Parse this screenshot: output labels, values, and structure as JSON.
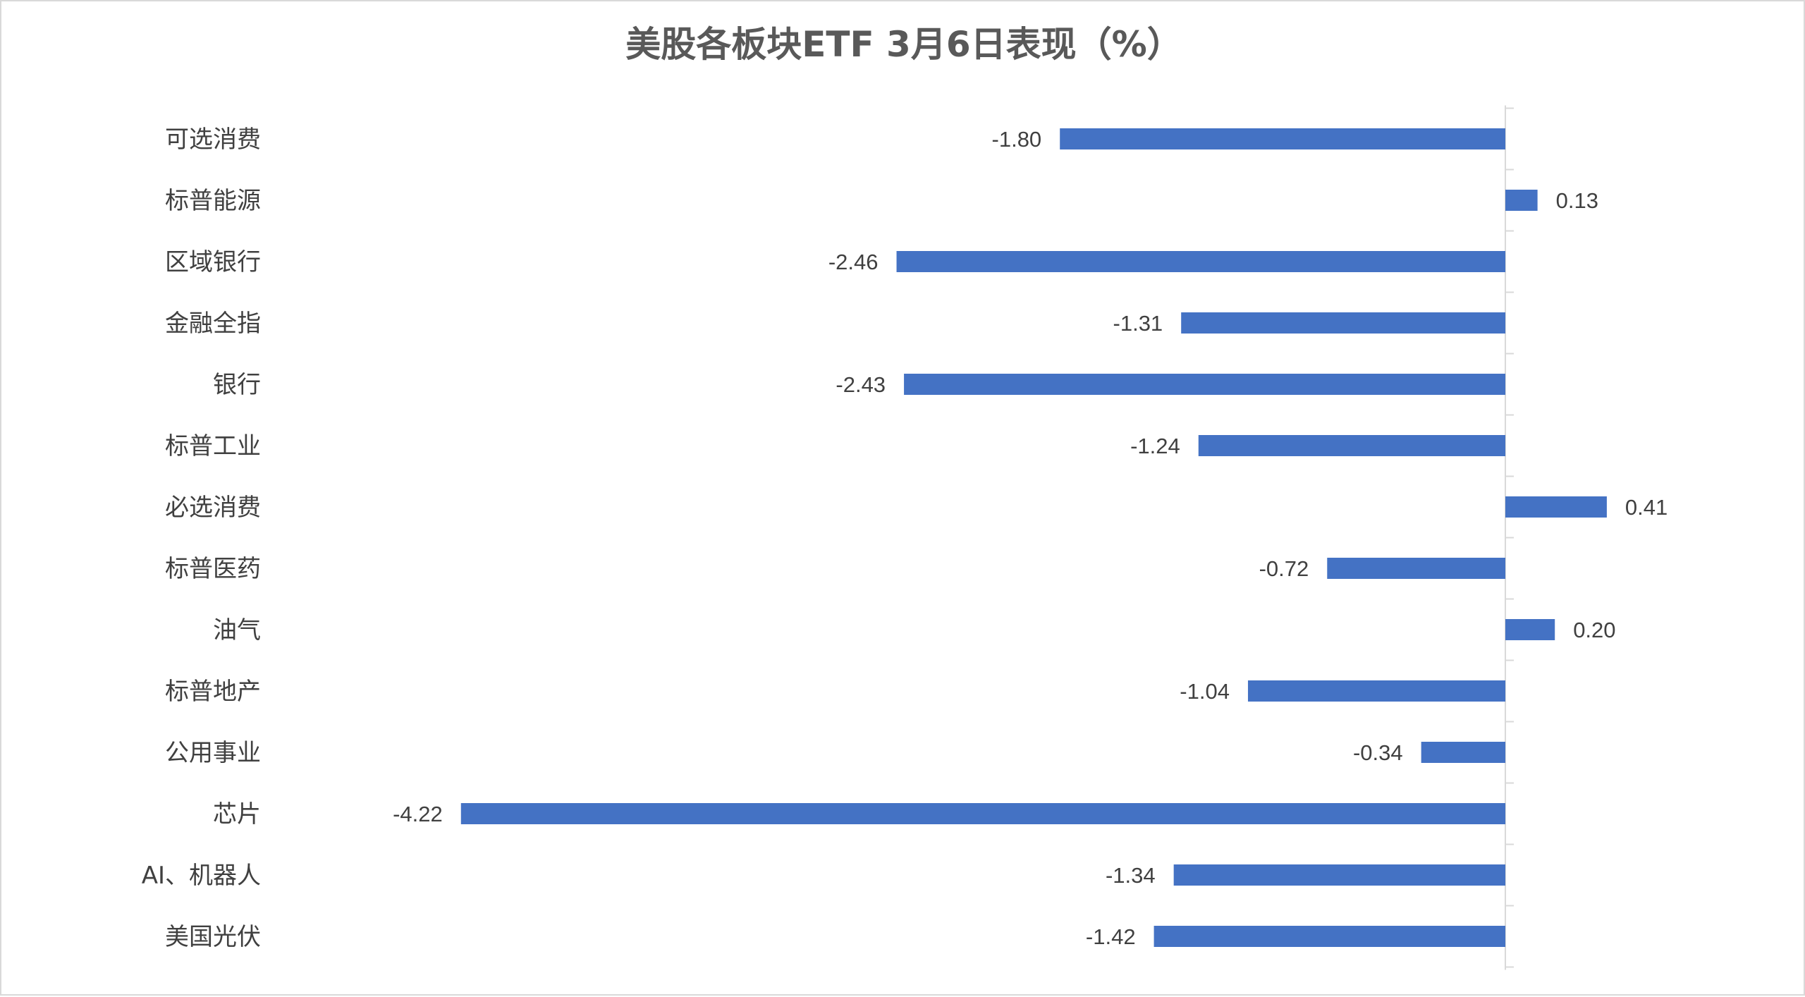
{
  "chart_data": {
    "type": "bar",
    "orientation": "horizontal",
    "title": "美股各板块ETF  3月6日表现（%）",
    "categories": [
      "可选消费",
      "标普能源",
      "区域银行",
      "金融全指",
      "银行",
      "标普工业",
      "必选消费",
      "标普医药",
      "油气",
      "标普地产",
      "公用事业",
      "芯片",
      "AI、机器人",
      "美国光伏"
    ],
    "values": [
      -1.8,
      0.13,
      -2.46,
      -1.31,
      -2.43,
      -1.24,
      0.41,
      -0.72,
      0.2,
      -1.04,
      -0.34,
      -4.22,
      -1.34,
      -1.42
    ],
    "value_labels": [
      "-1.80",
      "0.13",
      "-2.46",
      "-1.31",
      "-2.43",
      "-1.24",
      "0.41",
      "-0.72",
      "0.20",
      "-1.04",
      "-0.34",
      "-4.22",
      "-1.34",
      "-1.42"
    ],
    "bar_color": "#4472C4",
    "axis_color": "#d9d9d9",
    "legend": "none",
    "grid": false
  }
}
